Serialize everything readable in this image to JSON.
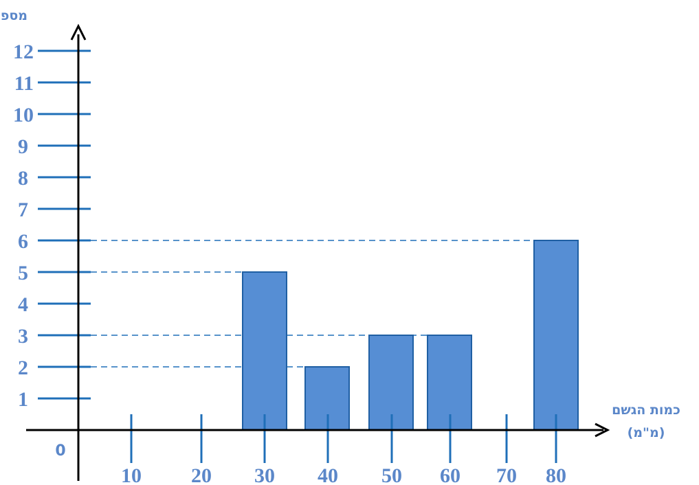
{
  "chart_data": {
    "type": "bar",
    "title": "",
    "ylabel": "מספר הימים",
    "xlabel_line1": "כמות הגשם",
    "xlabel_line2": "(מ\"מ)",
    "origin_label": "0",
    "categories": [
      "10",
      "20",
      "30",
      "40",
      "50",
      "60",
      "70",
      "80"
    ],
    "values": [
      0,
      0,
      5,
      2,
      3,
      3,
      0,
      6
    ],
    "y_ticks": [
      "1",
      "2",
      "3",
      "4",
      "5",
      "6",
      "7",
      "8",
      "9",
      "10",
      "11",
      "12"
    ],
    "ylim": [
      0,
      12
    ],
    "reference_lines": [
      2,
      3,
      5,
      6
    ],
    "grid": false,
    "colors": {
      "bar_fill": "#568ed4",
      "bar_stroke": "#1f5fa3",
      "tick": "#1f6fb8",
      "dashed": "#1f6fb8",
      "label": "#5b87c9",
      "axis": "#000000"
    }
  }
}
